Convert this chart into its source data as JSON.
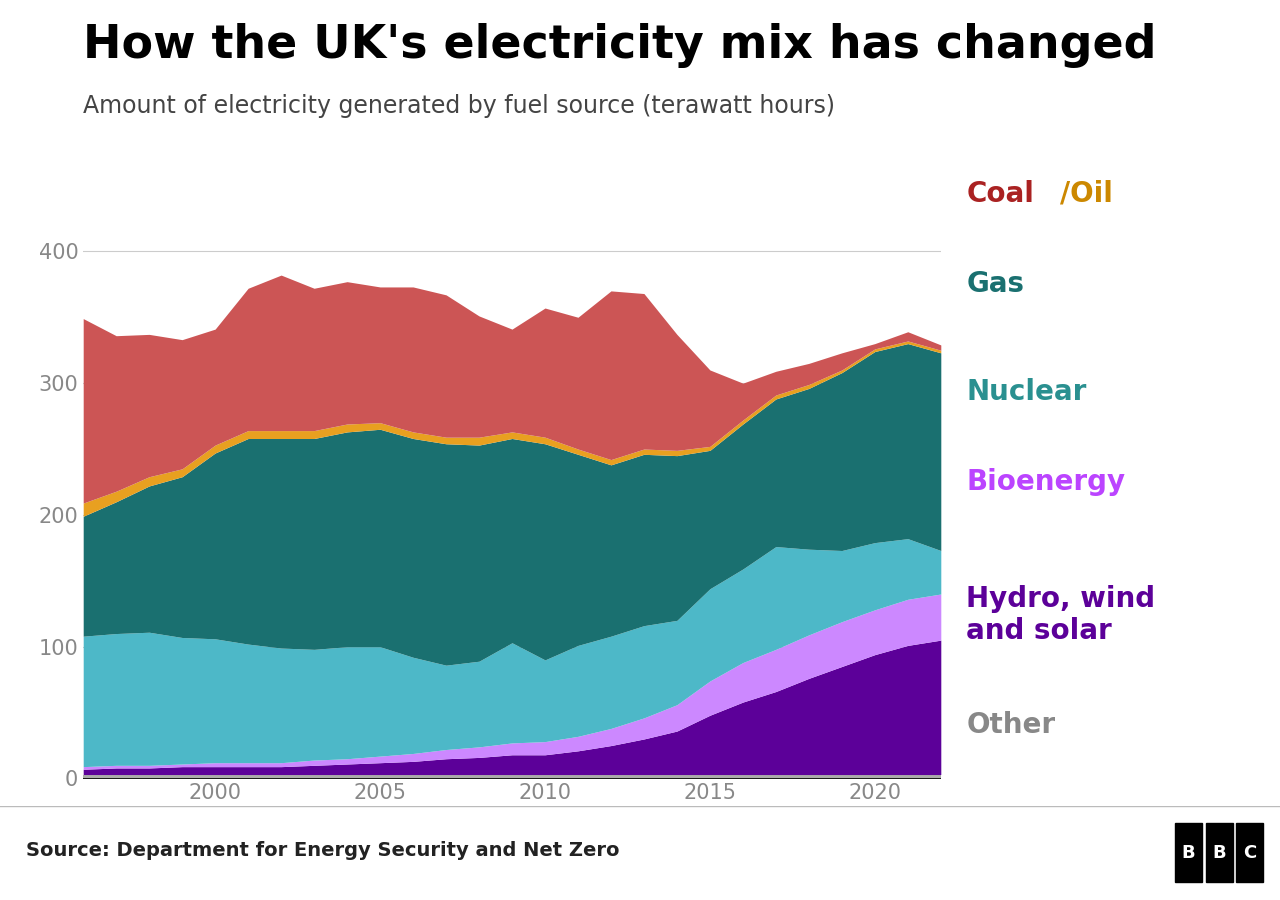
{
  "title": "How the UK's electricity mix has changed",
  "subtitle": "Amount of electricity generated by fuel source (terawatt hours)",
  "source": "Source: Department for Energy Security and Net Zero",
  "years": [
    1996,
    1997,
    1998,
    1999,
    2000,
    2001,
    2002,
    2003,
    2004,
    2005,
    2006,
    2007,
    2008,
    2009,
    2010,
    2011,
    2012,
    2013,
    2014,
    2015,
    2016,
    2017,
    2018,
    2019,
    2020,
    2021,
    2022
  ],
  "other": [
    3,
    3,
    3,
    3,
    3,
    3,
    3,
    3,
    3,
    3,
    3,
    3,
    3,
    3,
    3,
    3,
    3,
    3,
    3,
    3,
    3,
    3,
    3,
    3,
    3,
    3,
    3
  ],
  "hydro_wind_solar": [
    4,
    5,
    5,
    6,
    6,
    6,
    6,
    7,
    8,
    9,
    10,
    12,
    13,
    15,
    15,
    18,
    22,
    27,
    33,
    45,
    55,
    63,
    73,
    82,
    91,
    98,
    102
  ],
  "bioenergy": [
    2,
    2,
    2,
    2,
    3,
    3,
    3,
    4,
    4,
    5,
    6,
    7,
    8,
    9,
    10,
    11,
    13,
    16,
    20,
    26,
    30,
    32,
    33,
    34,
    34,
    35,
    35
  ],
  "nuclear": [
    99,
    100,
    101,
    96,
    94,
    90,
    87,
    84,
    85,
    83,
    73,
    64,
    65,
    76,
    62,
    69,
    70,
    70,
    64,
    70,
    71,
    78,
    65,
    54,
    51,
    46,
    33
  ],
  "gas": [
    91,
    100,
    111,
    122,
    141,
    156,
    159,
    160,
    163,
    165,
    166,
    168,
    164,
    155,
    164,
    145,
    130,
    130,
    125,
    105,
    110,
    112,
    122,
    135,
    145,
    148,
    150
  ],
  "oil": [
    10,
    8,
    7,
    6,
    6,
    6,
    6,
    6,
    6,
    5,
    5,
    5,
    6,
    5,
    5,
    4,
    4,
    4,
    4,
    3,
    3,
    3,
    3,
    2,
    2,
    2,
    2
  ],
  "coal": [
    140,
    118,
    108,
    98,
    88,
    108,
    118,
    108,
    108,
    103,
    110,
    108,
    92,
    78,
    98,
    100,
    128,
    118,
    88,
    58,
    28,
    18,
    16,
    13,
    4,
    7,
    4
  ],
  "colors": {
    "other": "#aaaaaa",
    "hydro_wind_solar": "#5c0099",
    "bioenergy": "#cc88ff",
    "nuclear": "#4db8c8",
    "gas": "#1a7070",
    "oil": "#e8a020",
    "coal": "#cc5555"
  },
  "legend_colors": {
    "coal_text": "#aa2222",
    "oil_text": "#cc8800",
    "gas_text": "#1a7070",
    "nuclear_text": "#2a9090",
    "bioenergy_text": "#bb44ff",
    "hydro_text": "#5c0099",
    "other_text": "#888888"
  },
  "ylim": [
    0,
    420
  ],
  "yticks": [
    0,
    100,
    200,
    300,
    400
  ],
  "xticks": [
    2000,
    2005,
    2010,
    2015,
    2020
  ],
  "bg_color": "#ffffff",
  "footer_bg": "#e8e8e8",
  "title_color": "#000000",
  "subtitle_color": "#444444",
  "source_color": "#222222"
}
